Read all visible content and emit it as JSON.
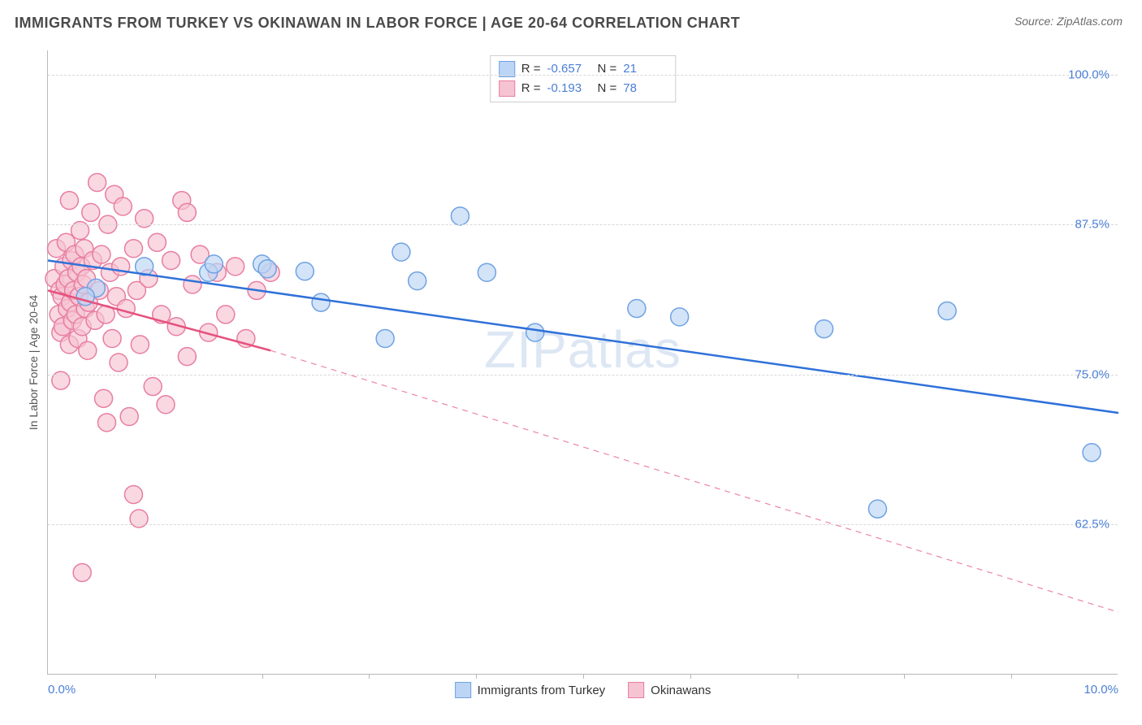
{
  "header": {
    "title": "IMMIGRANTS FROM TURKEY VS OKINAWAN IN LABOR FORCE | AGE 20-64 CORRELATION CHART",
    "source": "Source: ZipAtlas.com"
  },
  "chart": {
    "type": "scatter",
    "ylabel": "In Labor Force | Age 20-64",
    "xlim": [
      0.0,
      10.0
    ],
    "ylim": [
      50.0,
      102.0
    ],
    "xticks_major": [
      0.0,
      10.0
    ],
    "xticks_labels": [
      "0.0%",
      "10.0%"
    ],
    "xticks_minor": [
      1.0,
      2.0,
      3.0,
      4.0,
      5.0,
      6.0,
      7.0,
      8.0,
      9.0
    ],
    "yticks": [
      62.5,
      75.0,
      87.5,
      100.0
    ],
    "yticks_labels": [
      "62.5%",
      "75.0%",
      "87.5%",
      "100.0%"
    ],
    "background_color": "#ffffff",
    "grid_color": "#d8d8d8",
    "axis_color": "#b8b8b8",
    "tick_label_color": "#4a7fd6",
    "marker_radius": 11,
    "marker_stroke_width": 1.5,
    "line_width": 2.5,
    "watermark": "ZIPatlas",
    "series": [
      {
        "id": "turkey",
        "label": "Immigrants from Turkey",
        "color_fill": "#bcd5f4",
        "color_stroke": "#6fa2e3",
        "line_color": "#2f71d9",
        "R": "-0.657",
        "N": "21",
        "trend": {
          "x1": 0.0,
          "y1": 84.5,
          "x2": 10.0,
          "y2": 71.8
        },
        "trend_extrap": null,
        "points": [
          [
            0.45,
            82.2
          ],
          [
            0.35,
            81.5
          ],
          [
            0.9,
            84.0
          ],
          [
            1.5,
            83.5
          ],
          [
            1.55,
            84.2
          ],
          [
            2.0,
            84.2
          ],
          [
            2.05,
            83.8
          ],
          [
            2.4,
            83.6
          ],
          [
            2.55,
            81.0
          ],
          [
            3.15,
            78.0
          ],
          [
            3.3,
            85.2
          ],
          [
            3.45,
            82.8
          ],
          [
            3.85,
            88.2
          ],
          [
            4.1,
            83.5
          ],
          [
            4.55,
            78.5
          ],
          [
            5.5,
            80.5
          ],
          [
            5.9,
            79.8
          ],
          [
            7.25,
            78.8
          ],
          [
            7.75,
            63.8
          ],
          [
            8.4,
            80.3
          ],
          [
            9.75,
            68.5
          ]
        ]
      },
      {
        "id": "okinawans",
        "label": "Okinawans",
        "color_fill": "#f6c3d3",
        "color_stroke": "#e87ea2",
        "line_color": "#e6517e",
        "R": "-0.193",
        "N": "78",
        "trend": {
          "x1": 0.0,
          "y1": 82.0,
          "x2": 2.08,
          "y2": 77.0
        },
        "trend_extrap": {
          "x1": 2.08,
          "y1": 77.0,
          "x2": 10.0,
          "y2": 55.2
        },
        "points": [
          [
            0.06,
            83.0
          ],
          [
            0.08,
            85.5
          ],
          [
            0.1,
            80.0
          ],
          [
            0.11,
            82.0
          ],
          [
            0.12,
            78.5
          ],
          [
            0.13,
            81.5
          ],
          [
            0.14,
            79.0
          ],
          [
            0.15,
            84.0
          ],
          [
            0.16,
            82.5
          ],
          [
            0.17,
            86.0
          ],
          [
            0.18,
            80.5
          ],
          [
            0.19,
            83.0
          ],
          [
            0.2,
            77.5
          ],
          [
            0.21,
            81.0
          ],
          [
            0.22,
            84.5
          ],
          [
            0.23,
            79.5
          ],
          [
            0.24,
            82.0
          ],
          [
            0.25,
            85.0
          ],
          [
            0.26,
            80.0
          ],
          [
            0.27,
            83.5
          ],
          [
            0.28,
            78.0
          ],
          [
            0.29,
            81.5
          ],
          [
            0.3,
            87.0
          ],
          [
            0.31,
            84.0
          ],
          [
            0.32,
            79.0
          ],
          [
            0.33,
            82.5
          ],
          [
            0.34,
            85.5
          ],
          [
            0.35,
            80.5
          ],
          [
            0.36,
            83.0
          ],
          [
            0.37,
            77.0
          ],
          [
            0.38,
            81.0
          ],
          [
            0.4,
            88.5
          ],
          [
            0.42,
            84.5
          ],
          [
            0.44,
            79.5
          ],
          [
            0.46,
            91.0
          ],
          [
            0.48,
            82.0
          ],
          [
            0.5,
            85.0
          ],
          [
            0.52,
            73.0
          ],
          [
            0.54,
            80.0
          ],
          [
            0.56,
            87.5
          ],
          [
            0.58,
            83.5
          ],
          [
            0.6,
            78.0
          ],
          [
            0.62,
            90.0
          ],
          [
            0.64,
            81.5
          ],
          [
            0.66,
            76.0
          ],
          [
            0.68,
            84.0
          ],
          [
            0.7,
            89.0
          ],
          [
            0.73,
            80.5
          ],
          [
            0.76,
            71.5
          ],
          [
            0.8,
            85.5
          ],
          [
            0.83,
            82.0
          ],
          [
            0.86,
            77.5
          ],
          [
            0.9,
            88.0
          ],
          [
            0.94,
            83.0
          ],
          [
            0.98,
            74.0
          ],
          [
            1.02,
            86.0
          ],
          [
            1.06,
            80.0
          ],
          [
            1.1,
            72.5
          ],
          [
            1.15,
            84.5
          ],
          [
            1.2,
            79.0
          ],
          [
            1.25,
            89.5
          ],
          [
            1.3,
            76.5
          ],
          [
            1.35,
            82.5
          ],
          [
            1.42,
            85.0
          ],
          [
            1.5,
            78.5
          ],
          [
            1.58,
            83.5
          ],
          [
            1.66,
            80.0
          ],
          [
            1.75,
            84.0
          ],
          [
            1.85,
            78.0
          ],
          [
            1.95,
            82.0
          ],
          [
            2.08,
            83.5
          ],
          [
            0.32,
            58.5
          ],
          [
            0.85,
            63.0
          ],
          [
            0.8,
            65.0
          ],
          [
            0.55,
            71.0
          ],
          [
            1.3,
            88.5
          ],
          [
            0.2,
            89.5
          ],
          [
            0.12,
            74.5
          ]
        ]
      }
    ]
  }
}
